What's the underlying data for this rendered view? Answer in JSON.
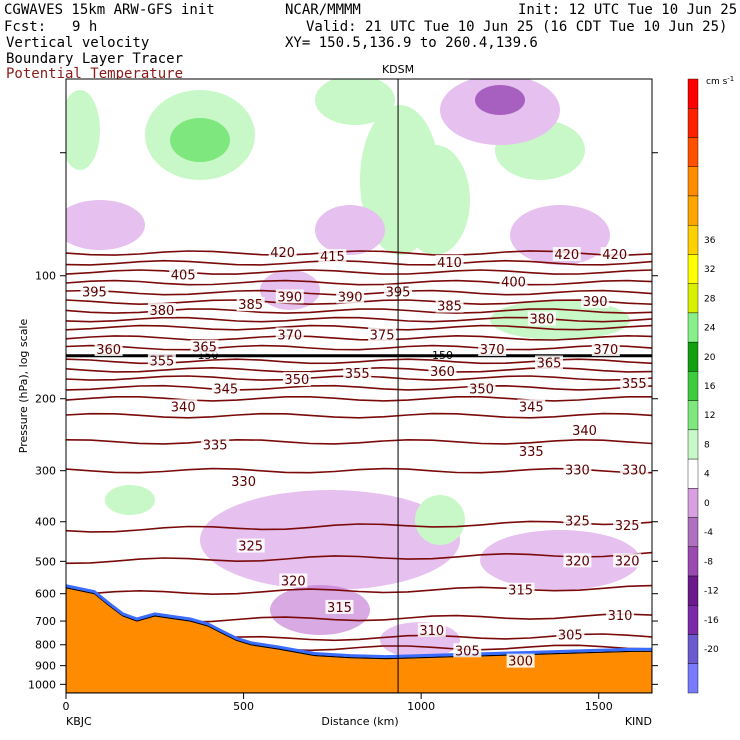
{
  "header": {
    "model": "CGWAVES 15km ARW-GFS init",
    "org": "NCAR/MMMM",
    "init": "Init: 12 UTC Tue 10 Jun 25",
    "fcst_label": "Fcst:",
    "fcst_value": "9 h",
    "valid": "Valid: 21 UTC Tue 10 Jun 25 (16 CDT Tue 10 Jun 25)",
    "field1": "Vertical velocity",
    "field2": "Boundary Layer Tracer",
    "field3": "Potential Temperature",
    "xy": "XY= 150.5,136.9 to 260.4,139.6",
    "field3_color": "#8b1a1a"
  },
  "chart_data": {
    "type": "heatmap",
    "ylabel": "Pressure (hPa), log scale",
    "xlabel": "Distance (km)",
    "y_scale": "log",
    "xlim": [
      0,
      1650
    ],
    "ylim": [
      1050,
      33
    ],
    "x_ticks": [
      0,
      500,
      1000,
      1500
    ],
    "y_ticks": [
      100,
      200,
      300,
      400,
      500,
      600,
      700,
      800,
      900,
      1000
    ],
    "endpoints": {
      "left": "KBJC",
      "right": "KIND"
    },
    "station_marker": {
      "name": "KDSM",
      "x_km": 935
    },
    "colorbar": {
      "unit": "cm s",
      "unit_exp": "-1",
      "levels": [
        -20,
        -16,
        -12,
        -8,
        -4,
        0,
        4,
        8,
        12,
        16,
        20,
        24,
        28,
        32,
        36
      ],
      "colors": [
        "#7a7aff",
        "#6a5acd",
        "#7b2aa8",
        "#6a1a8a",
        "#9a4ab0",
        "#b070c0",
        "#d8a0e0",
        "#ffffff",
        "#c8f8c8",
        "#7ee87e",
        "#3dcc3d",
        "#10a010",
        "#88f088",
        "#d8f000",
        "#ffff00",
        "#ffd000",
        "#ffa500",
        "#ff8c00",
        "#ff5000",
        "#ff2000",
        "#ff0000"
      ]
    },
    "theta_contours": [
      {
        "label": "420",
        "y_hpa": [
          88,
          88
        ]
      },
      {
        "label": "415",
        "y_hpa": [
          93,
          93
        ]
      },
      {
        "label": "410",
        "y_hpa": [
          98,
          98
        ]
      },
      {
        "label": "405",
        "y_hpa": [
          104,
          104
        ]
      },
      {
        "label": "400",
        "y_hpa": [
          110,
          110
        ]
      },
      {
        "label": "395",
        "y_hpa": [
          116,
          116
        ]
      },
      {
        "label": "390",
        "y_hpa": [
          122,
          122
        ]
      },
      {
        "label": "385",
        "y_hpa": [
          128,
          128
        ]
      },
      {
        "label": "380",
        "y_hpa": [
          134,
          134
        ]
      },
      {
        "label": "375",
        "y_hpa": [
          142,
          142
        ]
      },
      {
        "label": "370",
        "y_hpa": [
          150,
          150
        ]
      },
      {
        "label": "365",
        "y_hpa": [
          162,
          162
        ]
      },
      {
        "label": "360",
        "y_hpa": [
          170,
          170
        ]
      },
      {
        "label": "355",
        "y_hpa": [
          178,
          178
        ]
      },
      {
        "label": "350",
        "y_hpa": [
          188,
          188
        ]
      },
      {
        "label": "345",
        "y_hpa": [
          200,
          200
        ]
      },
      {
        "label": "340",
        "y_hpa": [
          220,
          220
        ]
      },
      {
        "label": "335",
        "y_hpa": [
          255,
          255
        ]
      },
      {
        "label": "330",
        "y_hpa": [
          300,
          300
        ]
      },
      {
        "label": "325",
        "y_hpa": [
          420,
          400
        ]
      },
      {
        "label": "320",
        "y_hpa": [
          500,
          480
        ]
      },
      {
        "label": "315",
        "y_hpa": [
          600,
          580
        ]
      },
      {
        "label": "310",
        "y_hpa": [
          700,
          680
        ]
      },
      {
        "label": "305",
        "y_hpa": [
          780,
          760
        ]
      },
      {
        "label": "300",
        "y_hpa": [
          820,
          810
        ]
      }
    ],
    "contour_label_positions": [
      {
        "text": "420",
        "x_km": 610,
        "y_hpa": 88
      },
      {
        "text": "415",
        "x_km": 750,
        "y_hpa": 90
      },
      {
        "text": "410",
        "x_km": 1080,
        "y_hpa": 93
      },
      {
        "text": "420",
        "x_km": 1410,
        "y_hpa": 89
      },
      {
        "text": "420",
        "x_km": 1545,
        "y_hpa": 89
      },
      {
        "text": "405",
        "x_km": 330,
        "y_hpa": 100
      },
      {
        "text": "400",
        "x_km": 1260,
        "y_hpa": 104
      },
      {
        "text": "395",
        "x_km": 80,
        "y_hpa": 110
      },
      {
        "text": "395",
        "x_km": 935,
        "y_hpa": 110
      },
      {
        "text": "390",
        "x_km": 630,
        "y_hpa": 113
      },
      {
        "text": "390",
        "x_km": 800,
        "y_hpa": 113
      },
      {
        "text": "390",
        "x_km": 1490,
        "y_hpa": 116
      },
      {
        "text": "380",
        "x_km": 270,
        "y_hpa": 122
      },
      {
        "text": "385",
        "x_km": 520,
        "y_hpa": 118
      },
      {
        "text": "385",
        "x_km": 1080,
        "y_hpa": 119
      },
      {
        "text": "380",
        "x_km": 1340,
        "y_hpa": 128
      },
      {
        "text": "370",
        "x_km": 630,
        "y_hpa": 140
      },
      {
        "text": "375",
        "x_km": 890,
        "y_hpa": 140
      },
      {
        "text": "365",
        "x_km": 390,
        "y_hpa": 150
      },
      {
        "text": "360",
        "x_km": 120,
        "y_hpa": 152
      },
      {
        "text": "370",
        "x_km": 1200,
        "y_hpa": 152
      },
      {
        "text": "370",
        "x_km": 1520,
        "y_hpa": 152
      },
      {
        "text": "355",
        "x_km": 270,
        "y_hpa": 162
      },
      {
        "text": "360",
        "x_km": 1060,
        "y_hpa": 172
      },
      {
        "text": "365",
        "x_km": 1360,
        "y_hpa": 164
      },
      {
        "text": "355",
        "x_km": 820,
        "y_hpa": 174
      },
      {
        "text": "345",
        "x_km": 450,
        "y_hpa": 190
      },
      {
        "text": "350",
        "x_km": 650,
        "y_hpa": 180
      },
      {
        "text": "350",
        "x_km": 1170,
        "y_hpa": 190
      },
      {
        "text": "355",
        "x_km": 1600,
        "y_hpa": 184
      },
      {
        "text": "340",
        "x_km": 330,
        "y_hpa": 210
      },
      {
        "text": "345",
        "x_km": 1310,
        "y_hpa": 210
      },
      {
        "text": "340",
        "x_km": 1460,
        "y_hpa": 240
      },
      {
        "text": "335",
        "x_km": 420,
        "y_hpa": 260
      },
      {
        "text": "335",
        "x_km": 1310,
        "y_hpa": 270
      },
      {
        "text": "330",
        "x_km": 500,
        "y_hpa": 320
      },
      {
        "text": "330",
        "x_km": 1440,
        "y_hpa": 300
      },
      {
        "text": "330",
        "x_km": 1600,
        "y_hpa": 300
      },
      {
        "text": "325",
        "x_km": 520,
        "y_hpa": 460
      },
      {
        "text": "325",
        "x_km": 1440,
        "y_hpa": 400
      },
      {
        "text": "325",
        "x_km": 1580,
        "y_hpa": 410
      },
      {
        "text": "320",
        "x_km": 640,
        "y_hpa": 560
      },
      {
        "text": "320",
        "x_km": 1440,
        "y_hpa": 500
      },
      {
        "text": "320",
        "x_km": 1580,
        "y_hpa": 500
      },
      {
        "text": "315",
        "x_km": 770,
        "y_hpa": 650
      },
      {
        "text": "315",
        "x_km": 1280,
        "y_hpa": 590
      },
      {
        "text": "310",
        "x_km": 1030,
        "y_hpa": 740
      },
      {
        "text": "310",
        "x_km": 1560,
        "y_hpa": 680
      },
      {
        "text": "305",
        "x_km": 1130,
        "y_hpa": 830
      },
      {
        "text": "305",
        "x_km": 1420,
        "y_hpa": 760
      },
      {
        "text": "300",
        "x_km": 1280,
        "y_hpa": 880
      }
    ],
    "tropopause_marks": [
      {
        "text": "150",
        "x_km": 400,
        "y_hpa": 157
      },
      {
        "text": "150",
        "x_km": 1060,
        "y_hpa": 157
      }
    ],
    "terrain_hpa": [
      [
        0,
        580
      ],
      [
        40,
        590
      ],
      [
        80,
        600
      ],
      [
        120,
        640
      ],
      [
        160,
        680
      ],
      [
        200,
        700
      ],
      [
        250,
        680
      ],
      [
        300,
        690
      ],
      [
        350,
        700
      ],
      [
        400,
        720
      ],
      [
        440,
        750
      ],
      [
        480,
        780
      ],
      [
        520,
        800
      ],
      [
        600,
        820
      ],
      [
        700,
        850
      ],
      [
        800,
        860
      ],
      [
        900,
        865
      ],
      [
        1000,
        860
      ],
      [
        1100,
        855
      ],
      [
        1200,
        850
      ],
      [
        1300,
        845
      ],
      [
        1400,
        840
      ],
      [
        1500,
        835
      ],
      [
        1600,
        830
      ],
      [
        1650,
        830
      ]
    ]
  }
}
